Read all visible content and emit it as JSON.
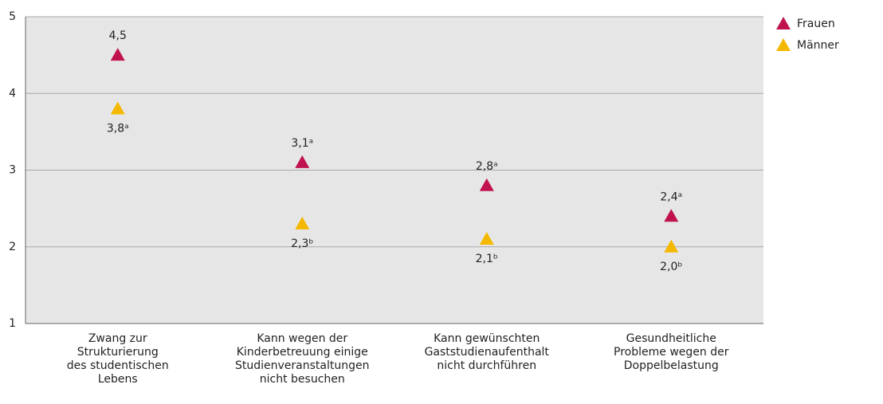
{
  "chart_data": {
    "type": "scatter",
    "categories": [
      "Zwang zur\nStrukturierung\ndes studentischen\nLebens",
      "Kann wegen der\nKinderbetreuung einige\nStudienveranstaltungen\nnicht besuchen",
      "Kann gewünschten\nGaststudienaufenthalt\nnicht durchführen",
      "Gesundheitliche\nProbleme wegen der\nDoppelbelastung"
    ],
    "series": [
      {
        "name": "Frauen",
        "color": "#c0124f",
        "values": [
          4.5,
          3.1,
          2.8,
          2.4
        ],
        "value_labels": [
          "4,5",
          "3,1ᵃ",
          "2,8ᵃ",
          "2,4ᵃ"
        ]
      },
      {
        "name": "Männer",
        "color": "#f5b800",
        "values": [
          3.8,
          2.3,
          2.1,
          2.0
        ],
        "value_labels": [
          "3,8ᵃ",
          "2,3ᵇ",
          "2,1ᵇ",
          "2,0ᵇ"
        ]
      }
    ],
    "ylim": [
      1,
      5
    ],
    "yticks": [
      1,
      2,
      3,
      4,
      5
    ],
    "grid": true,
    "legend": "top-right"
  }
}
